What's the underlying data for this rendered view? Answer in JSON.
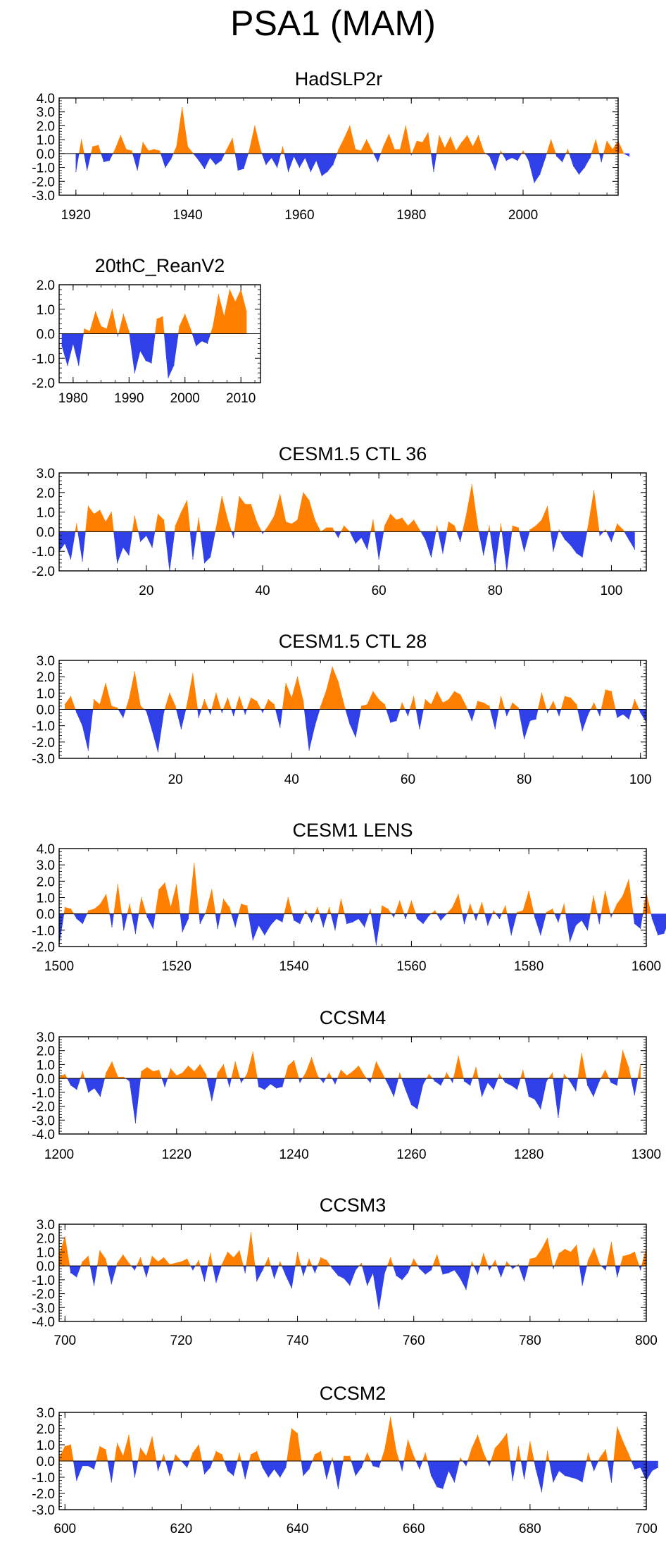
{
  "figure": {
    "title": "PSA1 (MAM)"
  },
  "colors": {
    "positive": "#ff8000",
    "negative": "#3040e8",
    "axis": "#000000"
  },
  "chart_data": [
    {
      "type": "area",
      "title": "HadSLP2r",
      "xlim": [
        1917,
        2017
      ],
      "ylim": [
        -3.0,
        4.0
      ],
      "yticks": [
        -3.0,
        -2.0,
        -1.0,
        0.0,
        1.0,
        2.0,
        3.0,
        4.0
      ],
      "ytick_labels": [
        "-3.0",
        "-2.0",
        "-1.0",
        "0.0",
        "1.0",
        "2.0",
        "3.0",
        "4.0"
      ],
      "xticks": [
        1920,
        1940,
        1960,
        1980,
        2000
      ],
      "xtick_labels": [
        "1920",
        "1940",
        "1960",
        "1980",
        "2000"
      ],
      "x_start": 1920,
      "values": [
        -1.3,
        1.0,
        -1.2,
        0.5,
        0.6,
        -0.6,
        -0.5,
        0.3,
        1.3,
        0.3,
        0.2,
        -1.2,
        0.8,
        0.2,
        0.3,
        0.2,
        -1.0,
        -0.4,
        0.5,
        3.3,
        0.5,
        0.0,
        -0.5,
        -1.1,
        -0.3,
        -0.8,
        -0.5,
        0.3,
        1.1,
        -1.2,
        -1.1,
        0.2,
        2.0,
        0.3,
        -0.8,
        -0.3,
        -1.0,
        0.5,
        -1.3,
        -0.2,
        -1.0,
        -0.3,
        -1.3,
        -0.5,
        -1.6,
        -1.3,
        -0.8,
        0.3,
        1.1,
        2.0,
        0.3,
        0.2,
        1.0,
        0.2,
        -0.6,
        0.5,
        1.4,
        0.3,
        0.3,
        2.0,
        -0.1,
        0.9,
        0.8,
        1.5,
        -1.3,
        1.3,
        0.4,
        1.2,
        0.2,
        0.8,
        1.3,
        0.5,
        1.3,
        0.1,
        -0.2,
        -1.2,
        0.2,
        -0.5,
        -0.3,
        -0.5,
        0.2,
        -0.5,
        -2.1,
        -1.5,
        -0.3,
        1.0,
        -0.2,
        -0.6,
        0.3,
        -0.9,
        -1.5,
        -1.0,
        -0.3,
        1.0,
        -0.6,
        0.9,
        0.3,
        0.9,
        0.0,
        -0.2
      ]
    },
    {
      "type": "area",
      "title": "20thC_ReanV2",
      "xlim": [
        1977.5,
        2013.5
      ],
      "ylim": [
        -2.0,
        2.0
      ],
      "yticks": [
        -2.0,
        -1.0,
        0.0,
        1.0,
        2.0
      ],
      "ytick_labels": [
        "-2.0",
        "-1.0",
        "0.0",
        "1.0",
        "2.0"
      ],
      "xticks": [
        1980,
        1990,
        2000,
        2010
      ],
      "xtick_labels": [
        "1980",
        "1990",
        "2000",
        "2010"
      ],
      "x_start": 1978,
      "values": [
        -0.5,
        -1.3,
        -0.4,
        -1.3,
        0.2,
        0.1,
        0.9,
        0.3,
        0.2,
        1.0,
        -0.1,
        0.8,
        0.1,
        -1.6,
        -0.7,
        -1.1,
        -1.2,
        0.6,
        0.7,
        -1.8,
        -1.3,
        0.3,
        0.8,
        0.2,
        -0.5,
        -0.3,
        -0.4,
        0.3,
        1.6,
        0.7,
        1.8,
        1.3,
        1.8,
        0.9
      ]
    },
    {
      "type": "area",
      "title": "CESM1.5 CTL 36",
      "xlim": [
        5,
        106
      ],
      "ylim": [
        -2.0,
        3.0
      ],
      "yticks": [
        -2.0,
        -1.0,
        0.0,
        1.0,
        2.0,
        3.0
      ],
      "ytick_labels": [
        "-2.0",
        "-1.0",
        "0.0",
        "1.0",
        "2.0",
        "3.0"
      ],
      "xticks": [
        20,
        40,
        60,
        80,
        100
      ],
      "xtick_labels": [
        "20",
        "40",
        "60",
        "80",
        "100"
      ],
      "x_start": 5,
      "values": [
        -1.0,
        -0.6,
        -1.4,
        0.4,
        -1.5,
        1.3,
        0.9,
        1.1,
        0.5,
        1.0,
        -1.6,
        -0.8,
        -1.2,
        0.8,
        -0.5,
        -0.2,
        -0.8,
        0.9,
        0.6,
        -2.0,
        0.3,
        1.0,
        1.6,
        -1.4,
        0.7,
        -1.6,
        -1.3,
        0.2,
        1.8,
        0.6,
        -0.3,
        1.8,
        1.4,
        1.4,
        0.5,
        -0.1,
        0.3,
        0.8,
        1.9,
        0.5,
        0.4,
        0.6,
        2.0,
        1.6,
        0.6,
        0.0,
        0.2,
        0.2,
        -0.3,
        0.3,
        0.0,
        -0.6,
        -0.3,
        -0.9,
        0.6,
        -1.4,
        0.3,
        0.9,
        0.6,
        0.7,
        0.3,
        0.6,
        0.1,
        -0.4,
        -1.3,
        0.3,
        -1.1,
        0.5,
        0.3,
        -0.5,
        0.8,
        2.4,
        0.3,
        -1.2,
        0.3,
        -1.8,
        0.4,
        -2.0,
        0.3,
        0.2,
        -1.0,
        0.1,
        0.3,
        0.6,
        1.3,
        -1.0,
        0.1,
        -0.4,
        -0.7,
        -1.1,
        -1.3,
        0.3,
        2.1,
        -0.2,
        0.1,
        -0.5,
        0.4,
        0.1,
        -0.4,
        -0.9
      ]
    },
    {
      "type": "area",
      "title": "CESM1.5 CTL 28",
      "xlim": [
        0,
        101
      ],
      "ylim": [
        -3.0,
        3.0
      ],
      "yticks": [
        -3.0,
        -2.0,
        -1.0,
        0.0,
        1.0,
        2.0,
        3.0
      ],
      "ytick_labels": [
        "-3.0",
        "-2.0",
        "-1.0",
        "0.0",
        "1.0",
        "2.0",
        "3.0"
      ],
      "xticks": [
        20,
        40,
        60,
        80,
        100
      ],
      "xtick_labels": [
        "20",
        "40",
        "60",
        "80",
        "100"
      ],
      "x_start": 1,
      "values": [
        0.3,
        0.8,
        -0.2,
        -1.0,
        -2.5,
        0.6,
        0.3,
        1.6,
        0.2,
        0.1,
        -0.5,
        0.6,
        2.3,
        0.2,
        -0.1,
        -1.3,
        -2.6,
        -0.2,
        1.0,
        0.2,
        -1.2,
        0.3,
        2.2,
        -0.5,
        0.6,
        -0.3,
        1.0,
        -0.2,
        0.7,
        -0.4,
        0.8,
        -0.3,
        0.7,
        0.5,
        -0.2,
        0.6,
        0.3,
        -1.1,
        1.6,
        0.7,
        2.0,
        0.5,
        -2.5,
        -1.0,
        0.2,
        1.2,
        2.6,
        1.7,
        0.3,
        -0.9,
        -1.7,
        0.2,
        0.3,
        1.1,
        0.6,
        0.3,
        -0.8,
        -0.7,
        0.4,
        -0.4,
        0.8,
        -1.2,
        0.6,
        0.3,
        1.1,
        0.4,
        0.6,
        1.1,
        0.9,
        0.2,
        -0.7,
        0.5,
        0.4,
        0.2,
        -1.2,
        0.8,
        -0.4,
        0.4,
        0.1,
        -1.8,
        -0.7,
        -0.6,
        1.0,
        -0.2,
        0.5,
        -0.4,
        0.8,
        0.7,
        0.3,
        -1.3,
        -0.3,
        0.4,
        -0.4,
        1.2,
        1.1,
        -0.5,
        -0.3,
        -0.6,
        0.6,
        -0.2,
        -0.8
      ]
    },
    {
      "type": "area",
      "title": "CESM1 LENS",
      "xlim": [
        1500,
        1600
      ],
      "ylim": [
        -2.0,
        4.0
      ],
      "yticks": [
        -2.0,
        -1.0,
        0.0,
        1.0,
        2.0,
        3.0,
        4.0
      ],
      "ytick_labels": [
        "-2.0",
        "-1.0",
        "0.0",
        "1.0",
        "2.0",
        "3.0",
        "4.0"
      ],
      "xticks": [
        1500,
        1520,
        1540,
        1560,
        1580,
        1600
      ],
      "xtick_labels": [
        "1500",
        "1520",
        "1540",
        "1560",
        "1580",
        "1600"
      ],
      "x_start": 1500,
      "values": [
        -1.9,
        0.4,
        0.3,
        -0.3,
        -0.6,
        0.2,
        0.3,
        0.6,
        1.2,
        -0.8,
        1.8,
        -1.0,
        0.6,
        -1.2,
        1.0,
        -0.2,
        -0.9,
        1.5,
        1.9,
        0.4,
        1.8,
        -1.1,
        -0.3,
        3.1,
        -0.6,
        0.1,
        1.5,
        -0.9,
        0.9,
        0.4,
        -0.8,
        0.6,
        0.5,
        -1.6,
        -0.7,
        -1.3,
        -0.7,
        -0.3,
        -0.5,
        1.0,
        -0.4,
        -0.6,
        0.2,
        -0.5,
        0.4,
        -0.8,
        0.4,
        -1.0,
        0.9,
        -0.6,
        -0.5,
        -0.3,
        -0.8,
        0.3,
        -1.9,
        0.5,
        0.3,
        -0.2,
        0.8,
        -0.3,
        0.8,
        -0.3,
        -0.6,
        -0.1,
        0.2,
        -0.4,
        0.0,
        0.4,
        1.2,
        -0.6,
        0.6,
        -0.4,
        0.7,
        -0.7,
        0.2,
        -0.3,
        0.5,
        -1.3,
        0.1,
        0.2,
        1.4,
        -0.2,
        -1.3,
        0.1,
        0.3,
        -0.5,
        0.6,
        -1.7,
        -0.7,
        -0.4,
        -1.0,
        1.1,
        -0.6,
        1.4,
        -0.2,
        0.6,
        1.1,
        2.1,
        -0.6,
        -0.9,
        1.3,
        -0.3,
        -1.3,
        -1.2,
        -0.3,
        0.5
      ]
    },
    {
      "type": "area",
      "title": "CCSM4",
      "xlim": [
        1200,
        1300
      ],
      "ylim": [
        -4.0,
        3.0
      ],
      "yticks": [
        -4.0,
        -3.0,
        -2.0,
        -1.0,
        0.0,
        1.0,
        2.0,
        3.0
      ],
      "ytick_labels": [
        "-4.0",
        "-3.0",
        "-2.0",
        "-1.0",
        "0.0",
        "1.0",
        "2.0",
        "3.0"
      ],
      "xticks": [
        1200,
        1220,
        1240,
        1260,
        1280,
        1300
      ],
      "xtick_labels": [
        "1200",
        "1220",
        "1240",
        "1260",
        "1280",
        "1300"
      ],
      "x_start": 1200,
      "values": [
        0.1,
        0.3,
        -0.5,
        -0.8,
        0.5,
        -1.0,
        -0.7,
        -1.3,
        0.4,
        1.2,
        0.1,
        0.1,
        -0.2,
        -3.2,
        0.5,
        0.8,
        0.5,
        0.6,
        -0.6,
        0.7,
        0.2,
        0.4,
        0.9,
        0.5,
        1.0,
        0.3,
        -1.6,
        0.4,
        1.0,
        -0.6,
        1.2,
        -0.3,
        0.3,
        1.9,
        -0.6,
        -0.8,
        -0.4,
        -0.7,
        -0.6,
        0.9,
        1.3,
        -0.3,
        0.4,
        1.5,
        0.2,
        -0.3,
        0.4,
        -0.4,
        0.6,
        0.2,
        0.5,
        0.9,
        0.2,
        -0.3,
        1.2,
        0.4,
        -0.4,
        -1.3,
        0.4,
        -0.8,
        -1.9,
        -2.2,
        -0.4,
        0.3,
        -0.2,
        -0.5,
        0.4,
        -0.3,
        1.6,
        -0.2,
        -0.5,
        0.8,
        -1.3,
        -0.3,
        -0.8,
        0.3,
        -0.3,
        -0.5,
        -0.8,
        0.6,
        -1.3,
        -1.5,
        -2.2,
        -0.2,
        0.4,
        -2.8,
        0.3,
        -0.2,
        -0.9,
        1.8,
        -0.5,
        -1.3,
        -0.2,
        0.6,
        -0.3,
        -0.5,
        2.0,
        0.8,
        -1.2,
        1.0
      ]
    },
    {
      "type": "area",
      "title": "CCSM3",
      "xlim": [
        699,
        800
      ],
      "ylim": [
        -4.0,
        3.0
      ],
      "yticks": [
        -4.0,
        -3.0,
        -2.0,
        -1.0,
        0.0,
        1.0,
        2.0,
        3.0
      ],
      "ytick_labels": [
        "-4.0",
        "-3.0",
        "-2.0",
        "-1.0",
        "0.0",
        "1.0",
        "2.0",
        "3.0"
      ],
      "xticks": [
        700,
        720,
        740,
        760,
        780,
        800
      ],
      "xtick_labels": [
        "700",
        "720",
        "740",
        "760",
        "780",
        "800"
      ],
      "x_start": 699,
      "values": [
        0.8,
        2.1,
        -0.5,
        -0.8,
        0.3,
        0.7,
        -1.4,
        1.1,
        0.5,
        -1.3,
        0.2,
        0.8,
        0.2,
        -0.3,
        0.6,
        -0.8,
        0.7,
        0.3,
        0.6,
        0.1,
        0.2,
        0.3,
        0.5,
        -0.3,
        0.4,
        -1.1,
        0.9,
        -1.2,
        0.1,
        1.0,
        0.6,
        1.1,
        -0.5,
        2.4,
        -1.1,
        -0.3,
        0.6,
        -0.9,
        0.3,
        -0.7,
        -1.6,
        1.0,
        -0.7,
        0.5,
        -0.5,
        0.6,
        0.4,
        -0.2,
        -0.7,
        -0.9,
        -1.4,
        -0.3,
        0.2,
        -1.4,
        -0.5,
        -3.1,
        -0.5,
        0.6,
        -0.7,
        -1.0,
        -0.5,
        0.5,
        -0.2,
        -0.6,
        -0.3,
        0.8,
        -0.6,
        -0.5,
        -0.3,
        -0.9,
        -1.7,
        0.3,
        -0.6,
        0.9,
        -0.3,
        0.4,
        -0.8,
        0.3,
        -0.2,
        0.1,
        -1.1,
        0.5,
        0.6,
        1.2,
        2.0,
        -0.2,
        0.9,
        1.2,
        1.0,
        1.5,
        -1.4,
        0.4,
        1.3,
        0.1,
        -0.3,
        1.7,
        -0.8,
        0.7,
        0.8,
        1.0,
        -0.3,
        1.3
      ]
    },
    {
      "type": "area",
      "title": "CCSM2",
      "xlim": [
        599,
        700
      ],
      "ylim": [
        -3.0,
        3.0
      ],
      "yticks": [
        -3.0,
        -2.0,
        -1.0,
        0.0,
        1.0,
        2.0,
        3.0
      ],
      "ytick_labels": [
        "-3.0",
        "-2.0",
        "-1.0",
        "0.0",
        "1.0",
        "2.0",
        "3.0"
      ],
      "xticks": [
        600,
        620,
        640,
        660,
        680,
        700
      ],
      "xtick_labels": [
        "600",
        "620",
        "640",
        "660",
        "680",
        "700"
      ],
      "x_start": 599,
      "values": [
        0.2,
        0.9,
        1.0,
        -1.2,
        -0.3,
        -0.3,
        -0.5,
        0.9,
        0.7,
        -1.3,
        1.1,
        0.3,
        1.6,
        -1.0,
        0.8,
        0.3,
        1.5,
        -0.6,
        0.4,
        -0.9,
        0.4,
        0.0,
        -0.4,
        0.5,
        1.0,
        -0.8,
        -0.4,
        0.6,
        0.4,
        -0.6,
        -0.9,
        0.5,
        -1.1,
        0.4,
        0.6,
        -0.4,
        -1.0,
        -0.5,
        -1.0,
        -0.4,
        2.0,
        1.7,
        -0.9,
        -0.5,
        0.4,
        0.6,
        -1.1,
        0.2,
        -1.7,
        0.3,
        0.3,
        -0.9,
        -0.4,
        0.5,
        -0.3,
        -0.4,
        0.7,
        2.7,
        0.6,
        -0.6,
        1.3,
        0.3,
        -0.5,
        0.5,
        -0.9,
        -1.6,
        -1.7,
        -0.6,
        -1.3,
        0.2,
        -0.3,
        0.8,
        1.6,
        0.5,
        -0.3,
        0.8,
        1.2,
        1.7,
        -1.2,
        0.9,
        -1.1,
        1.2,
        -0.5,
        -1.9,
        0.6,
        -1.3,
        -0.6,
        -0.9,
        -1.0,
        -1.1,
        -1.3,
        0.5,
        -0.6,
        0.2,
        0.7,
        -1.3,
        2.1,
        1.2,
        0.4,
        -0.5,
        -0.4,
        -1.2,
        -0.6,
        -0.4
      ]
    }
  ]
}
